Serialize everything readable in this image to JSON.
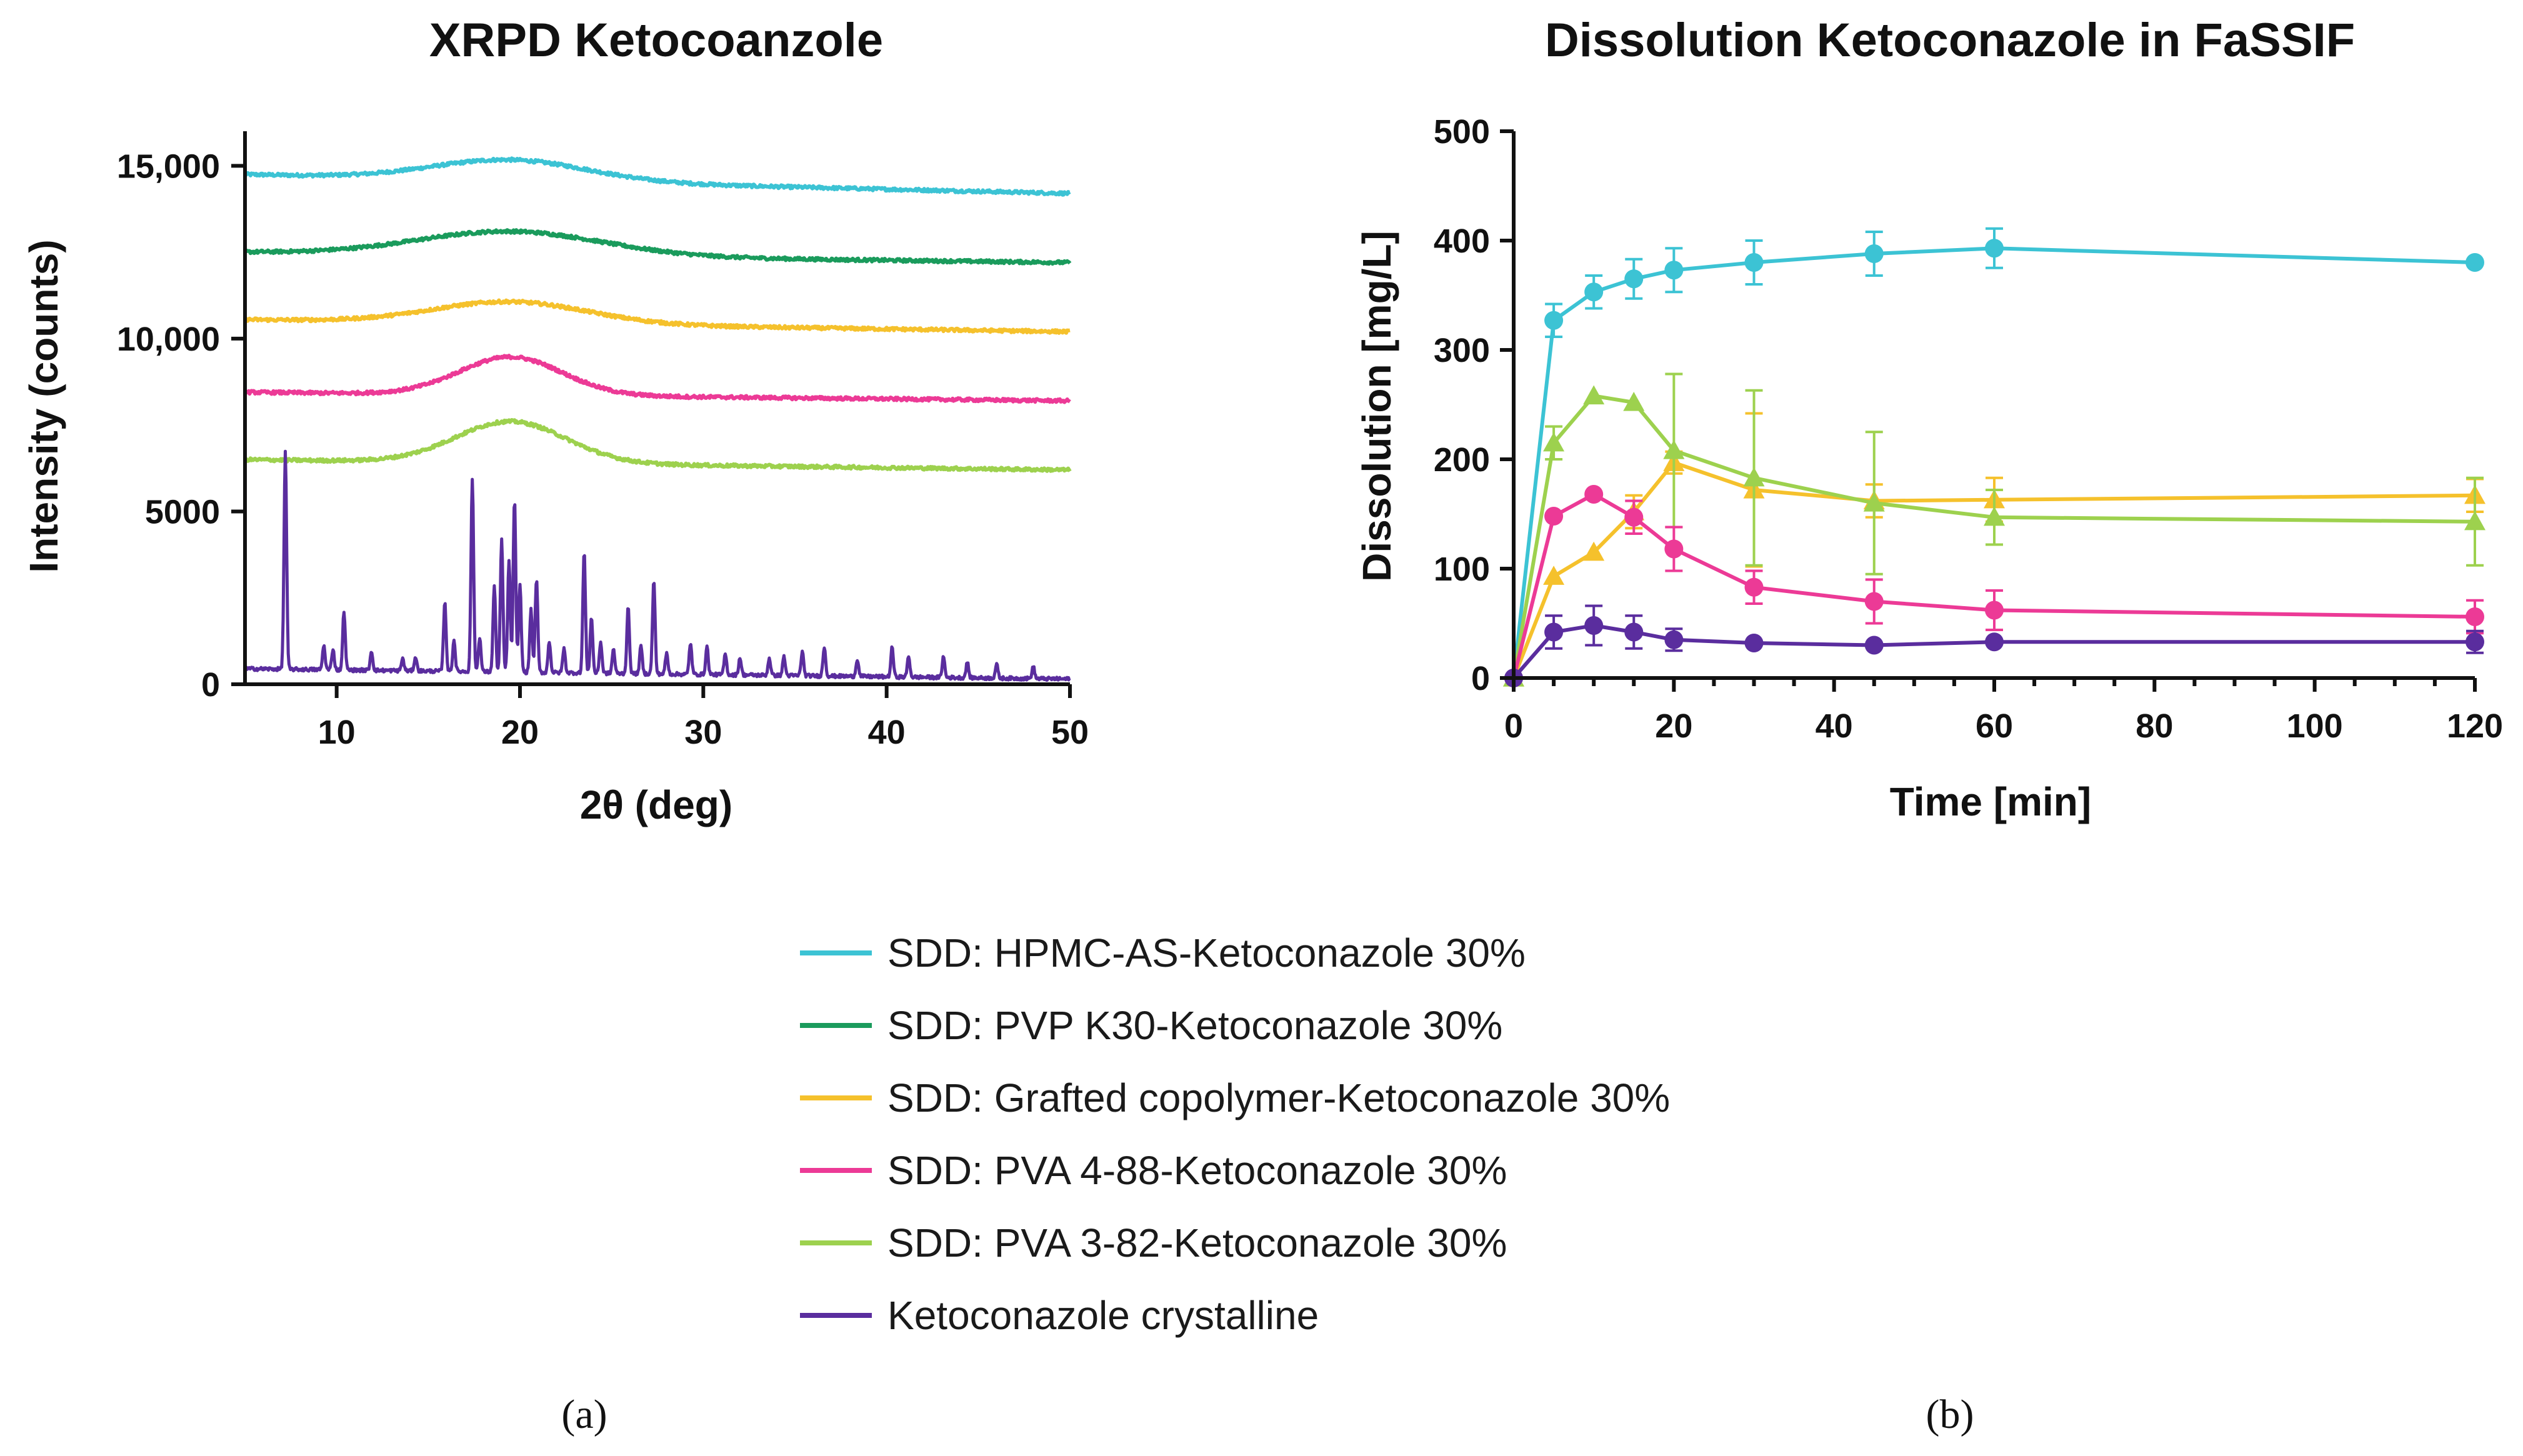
{
  "colors": {
    "hpmc": "#3cc3d4",
    "pvp": "#1a9b5c",
    "grafted": "#f5c12c",
    "pva488": "#ec3a96",
    "pva382": "#9dd14e",
    "crystalline": "#5a2d9e"
  },
  "legend": [
    {
      "label": "SDD: HPMC-AS-Ketoconazole 30%",
      "color": "#3cc3d4"
    },
    {
      "label": "SDD: PVP K30-Ketoconazole 30%",
      "color": "#1a9b5c"
    },
    {
      "label": "SDD: Grafted copolymer-Ketoconazole 30%",
      "color": "#f5c12c"
    },
    {
      "label": "SDD: PVA 4-88-Ketoconazole 30%",
      "color": "#ec3a96"
    },
    {
      "label": "SDD: PVA 3-82-Ketoconazole 30%",
      "color": "#9dd14e"
    },
    {
      "label": "Ketoconazole crystalline",
      "color": "#5a2d9e"
    }
  ],
  "panel_labels": {
    "a": "(a)",
    "b": "(b)"
  },
  "chart_data": [
    {
      "id": "xrpd",
      "type": "line",
      "title": "XRPD Ketocoanzole",
      "xlabel": "2θ (deg)",
      "ylabel": "Intensity (counts)",
      "xlim": [
        5,
        50
      ],
      "ylim": [
        0,
        16000
      ],
      "xticks": [
        10,
        20,
        30,
        40,
        50
      ],
      "xtick_labels": [
        "10",
        "20",
        "30",
        "40",
        "50"
      ],
      "yticks": [
        0,
        5000,
        10000,
        15000
      ],
      "ytick_labels": [
        "0",
        "5000",
        "10,000",
        "15,000"
      ],
      "amorphous_series": [
        {
          "name": "SDD: HPMC-AS-Ketoconazole 30%",
          "color": "#3cc3d4",
          "baseline_start": 14750,
          "baseline_end": 14200,
          "halo_center": 19.5,
          "halo_height": 600,
          "halo_width": 4.2
        },
        {
          "name": "SDD: PVP K30-Ketoconazole 30%",
          "color": "#1a9b5c",
          "baseline_start": 12500,
          "baseline_end": 12200,
          "halo_center": 19.5,
          "halo_height": 700,
          "halo_width": 5.0
        },
        {
          "name": "SDD: Grafted copolymer-Ketoconazole 30%",
          "color": "#f5c12c",
          "baseline_start": 10550,
          "baseline_end": 10200,
          "halo_center": 19.5,
          "halo_height": 630,
          "halo_width": 4.2
        },
        {
          "name": "SDD: PVA 4-88-Ketoconazole 30%",
          "color": "#ec3a96",
          "baseline_start": 8450,
          "baseline_end": 8200,
          "halo_center": 19.5,
          "halo_height": 1100,
          "halo_width": 2.8
        },
        {
          "name": "SDD: PVA 3-82-Ketoconazole 30%",
          "color": "#9dd14e",
          "baseline_start": 6500,
          "baseline_end": 6200,
          "halo_center": 19.5,
          "halo_height": 1200,
          "halo_width": 3.0
        }
      ],
      "crystalline_series": {
        "name": "Ketoconazole crystalline",
        "color": "#5a2d9e",
        "baseline_start": 450,
        "baseline_end": 150,
        "peaks": [
          [
            7.2,
            6300
          ],
          [
            9.3,
            700
          ],
          [
            9.8,
            600
          ],
          [
            10.4,
            1700
          ],
          [
            11.9,
            550
          ],
          [
            13.6,
            350
          ],
          [
            14.3,
            400
          ],
          [
            15.9,
            2000
          ],
          [
            16.4,
            900
          ],
          [
            17.4,
            5600
          ],
          [
            17.8,
            1000
          ],
          [
            18.6,
            2500
          ],
          [
            19.0,
            3800
          ],
          [
            19.4,
            3200
          ],
          [
            19.7,
            5000
          ],
          [
            20.0,
            2500
          ],
          [
            20.6,
            1800
          ],
          [
            20.9,
            2700
          ],
          [
            21.6,
            900
          ],
          [
            22.4,
            700
          ],
          [
            23.5,
            3500
          ],
          [
            23.9,
            1600
          ],
          [
            24.4,
            900
          ],
          [
            25.1,
            700
          ],
          [
            25.9,
            1900
          ],
          [
            26.6,
            800
          ],
          [
            27.3,
            2700
          ],
          [
            28.0,
            600
          ],
          [
            29.3,
            900
          ],
          [
            30.2,
            800
          ],
          [
            31.2,
            600
          ],
          [
            32.0,
            500
          ],
          [
            33.6,
            500
          ],
          [
            34.4,
            550
          ],
          [
            35.4,
            700
          ],
          [
            36.6,
            850
          ],
          [
            38.4,
            500
          ],
          [
            40.3,
            850
          ],
          [
            41.2,
            600
          ],
          [
            43.1,
            600
          ],
          [
            44.4,
            450
          ],
          [
            46.0,
            400
          ],
          [
            48.0,
            350
          ]
        ]
      }
    },
    {
      "id": "dissolution",
      "type": "line",
      "title": "Dissolution Ketoconazole in FaSSIF",
      "xlabel": "Time [min]",
      "ylabel": "Dissolution [mg/L]",
      "xlim": [
        0,
        120
      ],
      "ylim": [
        0,
        500
      ],
      "xticks": [
        0,
        20,
        40,
        60,
        80,
        100,
        120
      ],
      "xtick_labels": [
        "0",
        "20",
        "40",
        "60",
        "80",
        "100",
        "120"
      ],
      "yticks": [
        0,
        100,
        200,
        300,
        400,
        500
      ],
      "ytick_labels": [
        "0",
        "100",
        "200",
        "300",
        "400",
        "500"
      ],
      "series": [
        {
          "name": "SDD: HPMC-AS-Ketoconazole 30%",
          "color": "#3cc3d4",
          "marker": "circle",
          "x": [
            0,
            5,
            10,
            15,
            20,
            30,
            45,
            60,
            120
          ],
          "y": [
            0,
            327,
            353,
            365,
            373,
            380,
            388,
            393,
            380
          ],
          "err": [
            0,
            15,
            15,
            18,
            20,
            20,
            20,
            18,
            0
          ]
        },
        {
          "name": "SDD: Grafted copolymer-Ketoconazole 30%",
          "color": "#f5c12c",
          "marker": "triangle",
          "x": [
            0,
            5,
            10,
            15,
            20,
            30,
            45,
            60,
            120
          ],
          "y": [
            0,
            93,
            115,
            152,
            197,
            172,
            162,
            163,
            167
          ],
          "err": [
            0,
            0,
            0,
            15,
            10,
            70,
            15,
            20,
            15
          ]
        },
        {
          "name": "SDD: PVA 3-82-Ketoconazole 30%",
          "color": "#9dd14e",
          "marker": "triangle",
          "x": [
            0,
            5,
            10,
            15,
            20,
            30,
            45,
            60,
            120
          ],
          "y": [
            0,
            215,
            258,
            252,
            208,
            183,
            160,
            147,
            143
          ],
          "err": [
            0,
            15,
            0,
            0,
            70,
            80,
            65,
            25,
            40
          ]
        },
        {
          "name": "SDD: PVA 4-88-Ketoconazole 30%",
          "color": "#ec3a96",
          "marker": "circle",
          "x": [
            0,
            5,
            10,
            15,
            20,
            30,
            45,
            60,
            120
          ],
          "y": [
            0,
            148,
            168,
            147,
            118,
            83,
            70,
            62,
            56
          ],
          "err": [
            0,
            0,
            0,
            15,
            20,
            15,
            20,
            18,
            15
          ]
        },
        {
          "name": "Ketoconazole crystalline",
          "color": "#5a2d9e",
          "marker": "circle",
          "x": [
            0,
            5,
            10,
            15,
            20,
            30,
            45,
            60,
            120
          ],
          "y": [
            0,
            42,
            48,
            42,
            35,
            32,
            30,
            33,
            33
          ],
          "err": [
            0,
            15,
            18,
            15,
            10,
            0,
            0,
            0,
            10
          ]
        }
      ]
    }
  ]
}
